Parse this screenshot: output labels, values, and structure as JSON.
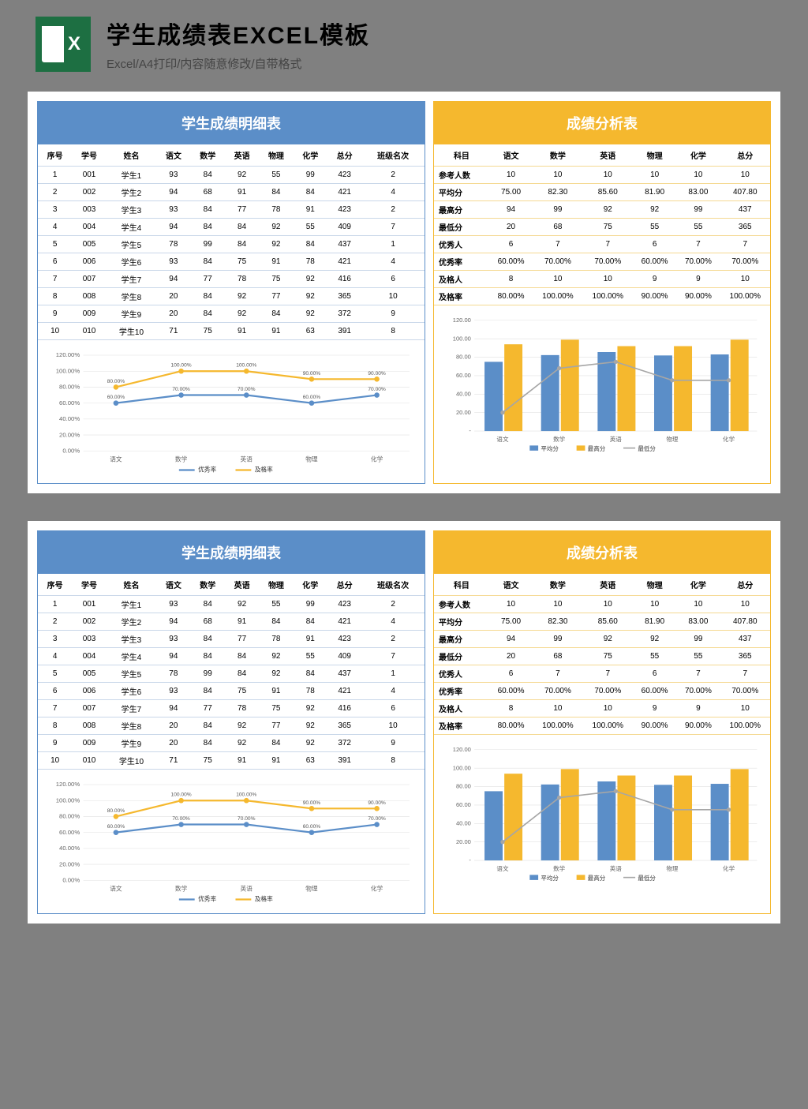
{
  "header": {
    "title": "学生成绩表EXCEL模板",
    "subtitle": "Excel/A4打印/内容随意修改/自带格式"
  },
  "detail_table": {
    "title": "学生成绩明细表",
    "columns": [
      "序号",
      "学号",
      "姓名",
      "语文",
      "数学",
      "英语",
      "物理",
      "化学",
      "总分",
      "班级名次"
    ],
    "rows": [
      [
        "1",
        "001",
        "学生1",
        "93",
        "84",
        "92",
        "55",
        "99",
        "423",
        "2"
      ],
      [
        "2",
        "002",
        "学生2",
        "94",
        "68",
        "91",
        "84",
        "84",
        "421",
        "4"
      ],
      [
        "3",
        "003",
        "学生3",
        "93",
        "84",
        "77",
        "78",
        "91",
        "423",
        "2"
      ],
      [
        "4",
        "004",
        "学生4",
        "94",
        "84",
        "84",
        "92",
        "55",
        "409",
        "7"
      ],
      [
        "5",
        "005",
        "学生5",
        "78",
        "99",
        "84",
        "92",
        "84",
        "437",
        "1"
      ],
      [
        "6",
        "006",
        "学生6",
        "93",
        "84",
        "75",
        "91",
        "78",
        "421",
        "4"
      ],
      [
        "7",
        "007",
        "学生7",
        "94",
        "77",
        "78",
        "75",
        "92",
        "416",
        "6"
      ],
      [
        "8",
        "008",
        "学生8",
        "20",
        "84",
        "92",
        "77",
        "92",
        "365",
        "10"
      ],
      [
        "9",
        "009",
        "学生9",
        "20",
        "84",
        "92",
        "84",
        "92",
        "372",
        "9"
      ],
      [
        "10",
        "010",
        "学生10",
        "71",
        "75",
        "91",
        "91",
        "63",
        "391",
        "8"
      ]
    ]
  },
  "analysis_table": {
    "title": "成绩分析表",
    "columns": [
      "科目",
      "语文",
      "数学",
      "英语",
      "物理",
      "化学",
      "总分"
    ],
    "rows": [
      [
        "参考人数",
        "10",
        "10",
        "10",
        "10",
        "10",
        "10"
      ],
      [
        "平均分",
        "75.00",
        "82.30",
        "85.60",
        "81.90",
        "83.00",
        "407.80"
      ],
      [
        "最高分",
        "94",
        "99",
        "92",
        "92",
        "99",
        "437"
      ],
      [
        "最低分",
        "20",
        "68",
        "75",
        "55",
        "55",
        "365"
      ],
      [
        "优秀人",
        "6",
        "7",
        "7",
        "6",
        "7",
        "7"
      ],
      [
        "优秀率",
        "60.00%",
        "70.00%",
        "70.00%",
        "60.00%",
        "70.00%",
        "70.00%"
      ],
      [
        "及格人",
        "8",
        "10",
        "10",
        "9",
        "9",
        "10"
      ],
      [
        "及格率",
        "80.00%",
        "100.00%",
        "100.00%",
        "90.00%",
        "90.00%",
        "100.00%"
      ]
    ]
  },
  "line_chart": {
    "type": "line",
    "categories": [
      "语文",
      "数学",
      "英语",
      "物理",
      "化学"
    ],
    "series": [
      {
        "name": "优秀率",
        "color": "#5b8ec8",
        "values": [
          60,
          70,
          70,
          60,
          70
        ],
        "labels": [
          "60.00%",
          "70.00%",
          "70.00%",
          "60.00%",
          "70.00%"
        ]
      },
      {
        "name": "及格率",
        "color": "#f5b82e",
        "values": [
          80,
          100,
          100,
          90,
          90
        ],
        "labels": [
          "80.00%",
          "100.00%",
          "100.00%",
          "90.00%",
          "90.00%"
        ]
      }
    ],
    "ylim": [
      0,
      120
    ],
    "ytick_step": 20,
    "ytick_labels": [
      "0.00%",
      "20.00%",
      "40.00%",
      "60.00%",
      "80.00%",
      "100.00%",
      "120.00%"
    ],
    "grid_color": "#e0e0e0",
    "background_color": "#ffffff",
    "line_width": 2,
    "marker_size": 3
  },
  "bar_chart": {
    "type": "bar+line",
    "categories": [
      "语文",
      "数学",
      "英语",
      "物理",
      "化学"
    ],
    "bar_series": [
      {
        "name": "平均分",
        "color": "#5b8ec8",
        "values": [
          75,
          82.3,
          85.6,
          81.9,
          83
        ]
      },
      {
        "name": "最高分",
        "color": "#f5b82e",
        "values": [
          94,
          99,
          92,
          92,
          99
        ]
      }
    ],
    "line_series": {
      "name": "最低分",
      "color": "#a6a6a6",
      "values": [
        20,
        68,
        75,
        55,
        55
      ]
    },
    "ylim": [
      0,
      120
    ],
    "ytick_step": 20,
    "ytick_labels": [
      "-",
      "20.00",
      "40.00",
      "60.00",
      "80.00",
      "100.00",
      "120.00"
    ],
    "grid_color": "#e0e0e0",
    "background_color": "#ffffff",
    "bar_width": 0.32
  }
}
